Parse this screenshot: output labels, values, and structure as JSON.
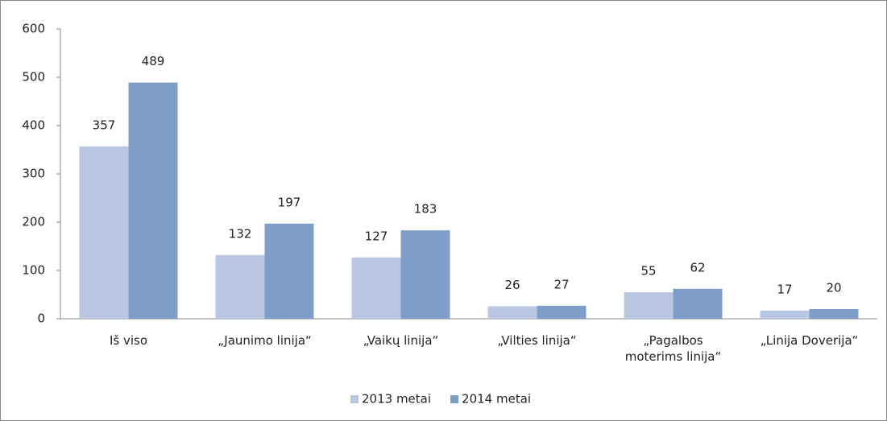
{
  "chart_data": {
    "type": "bar",
    "categories": [
      "Iš viso",
      "„Jaunimo linija“",
      "„Vaikų linija“",
      "„Vilties linija“",
      "„Pagalbos moterims linija“",
      "„Linija Doverija“"
    ],
    "series": [
      {
        "name": "2013 metai",
        "color": "#b9c7e2",
        "values": [
          357,
          132,
          127,
          26,
          55,
          17
        ]
      },
      {
        "name": "2014 metai",
        "color": "#7f9dc9",
        "values": [
          489,
          197,
          183,
          27,
          62,
          20
        ]
      }
    ],
    "ylim": [
      0,
      600
    ],
    "yticks": [
      0,
      100,
      200,
      300,
      400,
      500,
      600
    ],
    "grid": false,
    "legend": "bottom"
  }
}
